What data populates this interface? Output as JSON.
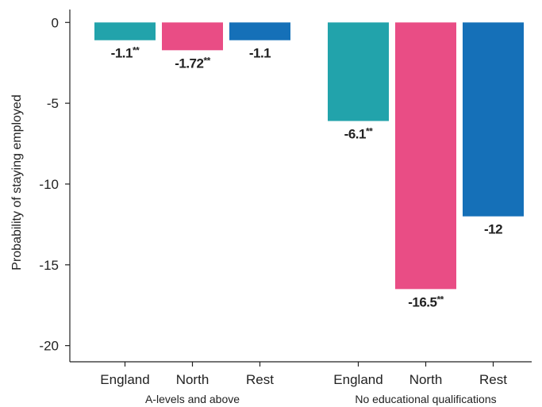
{
  "chart_data": {
    "type": "bar",
    "ylabel": "Probability of staying employed",
    "ylim": [
      -21,
      0.8
    ],
    "yticks": [
      0,
      -5,
      -10,
      -15,
      -20
    ],
    "ytick_labels": [
      "0",
      "-5",
      "-10",
      "-15",
      "-20"
    ],
    "groups": [
      {
        "label": "A-levels and above",
        "bars": [
          {
            "category": "England",
            "value": -1.1,
            "label": "-1.1",
            "significance": "**",
            "color": "#22a3ab"
          },
          {
            "category": "North",
            "value": -1.72,
            "label": "-1.72",
            "significance": "**",
            "color": "#e94d85"
          },
          {
            "category": "Rest",
            "value": -1.1,
            "label": "-1.1",
            "significance": "",
            "color": "#1570b8"
          }
        ]
      },
      {
        "label": "No educational qualifications",
        "bars": [
          {
            "category": "England",
            "value": -6.1,
            "label": "-6.1",
            "significance": "**",
            "color": "#22a3ab"
          },
          {
            "category": "North",
            "value": -16.5,
            "label": "-16.5",
            "significance": "**",
            "color": "#e94d85"
          },
          {
            "category": "Rest",
            "value": -12,
            "label": "-12",
            "significance": "",
            "color": "#1570b8"
          }
        ]
      }
    ]
  }
}
